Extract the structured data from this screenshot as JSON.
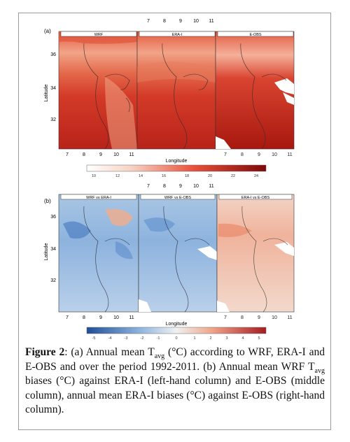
{
  "panel_a": {
    "label": "(a)",
    "top_ticks": [
      "7",
      "8",
      "9",
      "10",
      "11"
    ],
    "bottom_ticks": [
      "7",
      "8",
      "9",
      "10",
      "11"
    ],
    "lat_ticks": [
      "36",
      "34",
      "32"
    ],
    "ylabel": "Latitude",
    "xlabel": "Longitude",
    "maps": [
      "WRF",
      "ERA-I",
      "E-OBS"
    ],
    "colorbar_ticks": [
      "10",
      "12",
      "14",
      "16",
      "18",
      "20",
      "22",
      "24"
    ],
    "colors": {
      "low": "#f7e0d8",
      "mid": "#e8503a",
      "high": "#8e0a0a"
    }
  },
  "panel_b": {
    "label": "(b)",
    "top_ticks": [
      "7",
      "8",
      "9",
      "10",
      "11"
    ],
    "bottom_ticks": [
      "7",
      "8",
      "9",
      "10",
      "11"
    ],
    "lat_ticks": [
      "36",
      "34",
      "32"
    ],
    "ylabel": "Latitude",
    "xlabel": "Longitude",
    "maps": [
      "WRF vs ERA-I",
      "WRF vs E-OBS",
      "ERA-I vs E-OBS"
    ],
    "colorbar_ticks": [
      "-5",
      "-4",
      "-3",
      "-2",
      "-1",
      "0",
      "1",
      "2",
      "3",
      "4",
      "5"
    ],
    "colors": {
      "neg": "#2c5da8",
      "zero": "#eef0f2",
      "pos": "#b2242a"
    }
  },
  "caption": {
    "label": "Figure 2",
    "t1": ": (a) Annual mean T",
    "s1": "avg",
    "t2": " (°C) according to WRF, ERA-I and E-OBS and over the period 1992-2011. (b) Annual mean WRF T",
    "s2": "avg",
    "t3": " biases (°C) against ERA-I (left-hand column) and E-OBS (middle column), annual mean ERA-I biases (°C) against E-OBS (right-hand column)."
  }
}
